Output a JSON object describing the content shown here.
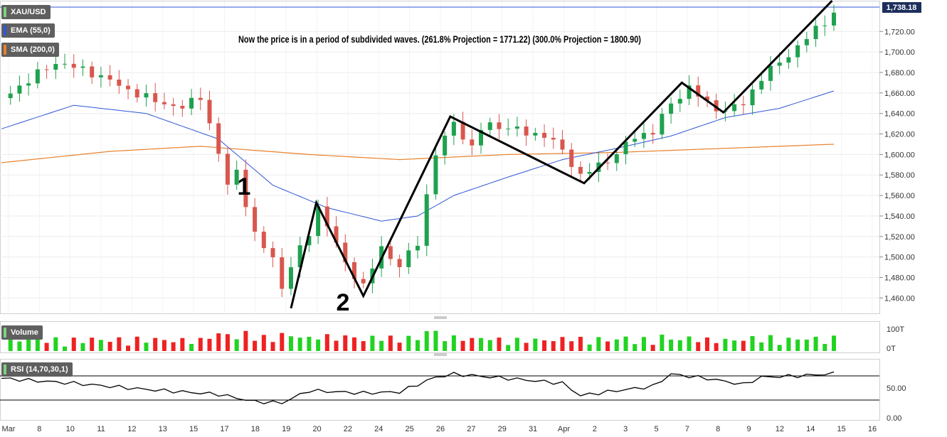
{
  "instrument": {
    "symbol": "XAU/USD",
    "last_price": "1,738.18"
  },
  "indicators": {
    "ema": {
      "label": "EMA (55,0)",
      "color": "#2f56d6"
    },
    "sma": {
      "label": "SMA (200,0)",
      "color": "#e8802b"
    },
    "volume": {
      "label": "Volume"
    },
    "rsi": {
      "label": "RSI (14,70,30,1)"
    }
  },
  "annotation": {
    "text": "Now the price is in a period of subdivided waves. (261.8% Projection = 1771.22) (300.0% Projection = 1800.90)",
    "wave_label_1": "1",
    "wave_label_2": "2"
  },
  "colors": {
    "up": "#1fa14f",
    "down": "#d8574e",
    "vol_up": "#22d322",
    "vol_down": "#ee2222",
    "wave": "#000000"
  },
  "chart_data": {
    "type": "candlestick",
    "price_axis": {
      "ylim": [
        1445,
        1750
      ],
      "ticks": [
        "1,460.00",
        "1,480.00",
        "1,500.00",
        "1,520.00",
        "1,540.00",
        "1,560.00",
        "1,580.00",
        "1,600.00",
        "1,620.00",
        "1,640.00",
        "1,660.00",
        "1,680.00",
        "1,700.00",
        "1,720.00"
      ],
      "tick_values": [
        1460,
        1480,
        1500,
        1520,
        1540,
        1560,
        1580,
        1600,
        1620,
        1640,
        1660,
        1680,
        1700,
        1720
      ]
    },
    "volume_axis": {
      "ticks": [
        "100T",
        "0T"
      ]
    },
    "rsi_axis": {
      "ticks": [
        "50.00",
        "0.00"
      ],
      "levels": [
        70,
        30
      ]
    },
    "x_ticks": [
      "Mar",
      "8",
      "10",
      "11",
      "12",
      "13",
      "15",
      "17",
      "18",
      "19",
      "20",
      "22",
      "24",
      "25",
      "26",
      "27",
      "29",
      "31",
      "Apr",
      "2",
      "3",
      "5",
      "7",
      "8",
      "9",
      "12",
      "14",
      "15",
      "16"
    ],
    "close_path": [
      [
        0,
        1655
      ],
      [
        3,
        1690
      ],
      [
        5,
        1680
      ],
      [
        8,
        1655
      ],
      [
        10,
        1645
      ],
      [
        11,
        1658
      ],
      [
        12,
        1600
      ],
      [
        12.5,
        1570
      ],
      [
        13,
        1585
      ],
      [
        14,
        1520
      ],
      [
        15,
        1500
      ],
      [
        15.5,
        1470
      ],
      [
        16,
        1490
      ],
      [
        17,
        1525
      ],
      [
        17.5,
        1548
      ],
      [
        18,
        1530
      ],
      [
        19,
        1495
      ],
      [
        20,
        1470
      ],
      [
        21,
        1510
      ],
      [
        22,
        1490
      ],
      [
        23,
        1515
      ],
      [
        23.5,
        1560
      ],
      [
        24,
        1600
      ],
      [
        25,
        1632
      ],
      [
        26,
        1605
      ],
      [
        26.5,
        1625
      ],
      [
        27,
        1630
      ],
      [
        28,
        1625
      ],
      [
        29,
        1622
      ],
      [
        30,
        1618
      ],
      [
        31,
        1605
      ],
      [
        32,
        1578
      ],
      [
        33,
        1590
      ],
      [
        34,
        1600
      ],
      [
        35,
        1618
      ],
      [
        36,
        1622
      ],
      [
        37,
        1650
      ],
      [
        38,
        1665
      ],
      [
        39,
        1650
      ],
      [
        40,
        1642
      ],
      [
        41,
        1650
      ],
      [
        42,
        1675
      ],
      [
        43,
        1690
      ],
      [
        44,
        1705
      ],
      [
        45,
        1722
      ],
      [
        46,
        1738
      ]
    ],
    "ema_path": [
      [
        0,
        1625
      ],
      [
        4,
        1648
      ],
      [
        8,
        1640
      ],
      [
        12,
        1615
      ],
      [
        15,
        1570
      ],
      [
        18,
        1548
      ],
      [
        21,
        1535
      ],
      [
        23,
        1540
      ],
      [
        25,
        1560
      ],
      [
        28,
        1578
      ],
      [
        31,
        1595
      ],
      [
        34,
        1606
      ],
      [
        37,
        1618
      ],
      [
        40,
        1636
      ],
      [
        43,
        1645
      ],
      [
        46,
        1662
      ]
    ],
    "sma_path": [
      [
        0,
        1592
      ],
      [
        6,
        1603
      ],
      [
        11,
        1608
      ],
      [
        17,
        1600
      ],
      [
        22,
        1595
      ],
      [
        28,
        1600
      ],
      [
        34,
        1602
      ],
      [
        40,
        1606
      ],
      [
        46,
        1610
      ]
    ],
    "wave_path": [
      [
        16,
        1450
      ],
      [
        17.4,
        1553
      ],
      [
        20,
        1462
      ],
      [
        24.8,
        1637
      ],
      [
        32.2,
        1572
      ],
      [
        37.6,
        1670
      ],
      [
        39.9,
        1641
      ],
      [
        45.9,
        1750
      ]
    ],
    "rsi_path": [
      [
        0,
        68
      ],
      [
        4,
        60
      ],
      [
        8,
        50
      ],
      [
        12,
        42
      ],
      [
        14,
        30
      ],
      [
        15.5,
        28
      ],
      [
        17,
        48
      ],
      [
        20,
        44
      ],
      [
        22,
        46
      ],
      [
        24,
        70
      ],
      [
        25,
        75
      ],
      [
        28,
        68
      ],
      [
        31,
        60
      ],
      [
        32,
        40
      ],
      [
        34,
        48
      ],
      [
        36,
        55
      ],
      [
        37,
        75
      ],
      [
        39,
        68
      ],
      [
        41,
        58
      ],
      [
        42,
        70
      ],
      [
        44,
        72
      ],
      [
        46,
        76
      ]
    ]
  }
}
